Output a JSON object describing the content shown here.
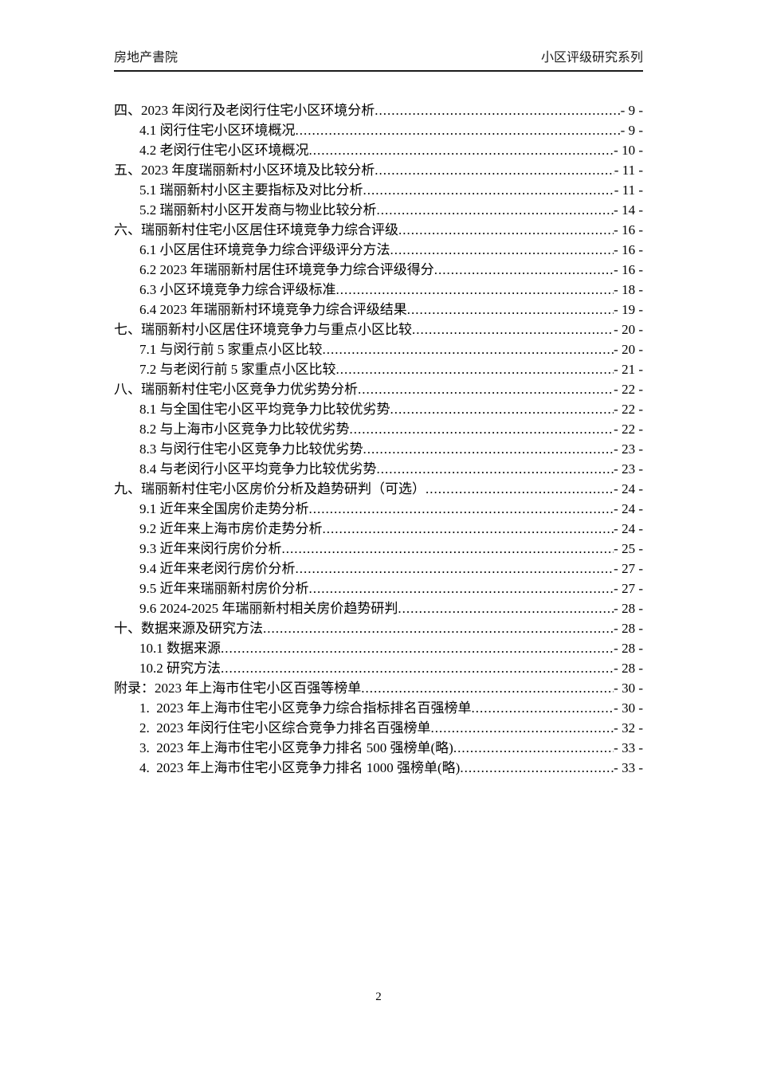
{
  "page": {
    "header": {
      "left_title": "房地产書院",
      "right_title": "小区评级研究系列"
    },
    "footer": {
      "page_number": "2"
    }
  },
  "toc": {
    "entries": [
      {
        "level": 0,
        "title": "四、2023 年闵行及老闵行住宅小区环境分析",
        "page": "- 9 -"
      },
      {
        "level": 1,
        "title": "4.1 闵行住宅小区环境概况",
        "page": "- 9 -"
      },
      {
        "level": 1,
        "title": "4.2 老闵行住宅小区环境概况",
        "page": "- 10 -"
      },
      {
        "level": 0,
        "title": "五、2023 年度瑞丽新村小区环境及比较分析",
        "page": "- 11 -"
      },
      {
        "level": 1,
        "title": "5.1 瑞丽新村小区主要指标及对比分析",
        "page": "- 11 -"
      },
      {
        "level": 1,
        "title": "5.2 瑞丽新村小区开发商与物业比较分析",
        "page": "- 14 -"
      },
      {
        "level": 0,
        "title": "六、瑞丽新村住宅小区居住环境竞争力综合评级",
        "page": "- 16 -"
      },
      {
        "level": 1,
        "title": "6.1 小区居住环境竞争力综合评级评分方法",
        "page": "- 16 -"
      },
      {
        "level": 1,
        "title": "6.2 2023 年瑞丽新村居住环境竞争力综合评级得分",
        "page": "- 16 -"
      },
      {
        "level": 1,
        "title": "6.3 小区环境竞争力综合评级标准",
        "page": "- 18 -"
      },
      {
        "level": 1,
        "title": "6.4 2023 年瑞丽新村环境竞争力综合评级结果",
        "page": "- 19 -"
      },
      {
        "level": 0,
        "title": "七、瑞丽新村小区居住环境竞争力与重点小区比较",
        "page": "- 20 -"
      },
      {
        "level": 1,
        "title": "7.1 与闵行前 5 家重点小区比较",
        "page": "- 20 -"
      },
      {
        "level": 1,
        "title": "7.2 与老闵行前 5 家重点小区比较",
        "page": "- 21 -"
      },
      {
        "level": 0,
        "title": "八、瑞丽新村住宅小区竞争力优劣势分析",
        "page": "- 22 -"
      },
      {
        "level": 1,
        "title": "8.1 与全国住宅小区平均竞争力比较优劣势",
        "page": "- 22 -"
      },
      {
        "level": 1,
        "title": "8.2 与上海市小区竞争力比较优劣势",
        "page": "- 22 -"
      },
      {
        "level": 1,
        "title": "8.3 与闵行住宅小区竞争力比较优劣势",
        "page": "- 23 -"
      },
      {
        "level": 1,
        "title": "8.4 与老闵行小区平均竞争力比较优劣势",
        "page": "- 23 -"
      },
      {
        "level": 0,
        "title": "九、瑞丽新村住宅小区房价分析及趋势研判（可选）",
        "page": "- 24 -"
      },
      {
        "level": 1,
        "title": "9.1 近年来全国房价走势分析",
        "page": "- 24 -"
      },
      {
        "level": 1,
        "title": "9.2 近年来上海市房价走势分析",
        "page": "- 24 -"
      },
      {
        "level": 1,
        "title": "9.3 近年来闵行房价分析",
        "page": "- 25 -"
      },
      {
        "level": 1,
        "title": "9.4 近年来老闵行房价分析",
        "page": "- 27 -"
      },
      {
        "level": 1,
        "title": "9.5 近年来瑞丽新村房价分析",
        "page": "- 27 -"
      },
      {
        "level": 1,
        "title": "9.6 2024-2025 年瑞丽新村相关房价趋势研判",
        "page": "- 28 -"
      },
      {
        "level": 0,
        "title": "十、数据来源及研究方法",
        "page": "- 28 -"
      },
      {
        "level": 1,
        "title": "10.1 数据来源",
        "page": "- 28 -"
      },
      {
        "level": 1,
        "title": "10.2 研究方法",
        "page": "- 28 -"
      },
      {
        "level": 0,
        "title": "附录：2023 年上海市住宅小区百强等榜单",
        "page": "- 30 -"
      },
      {
        "level": 1,
        "title": "1.  2023 年上海市住宅小区竞争力综合指标排名百强榜单",
        "page": "- 30 -"
      },
      {
        "level": 1,
        "title": "2.  2023 年闵行住宅小区综合竞争力排名百强榜单",
        "page": "- 32 -"
      },
      {
        "level": 1,
        "title": "3.  2023 年上海市住宅小区竞争力排名 500 强榜单(略)",
        "page": "- 33 -"
      },
      {
        "level": 1,
        "title": "4.  2023 年上海市住宅小区竞争力排名 1000 强榜单(略)",
        "page": "- 33 -"
      }
    ]
  }
}
